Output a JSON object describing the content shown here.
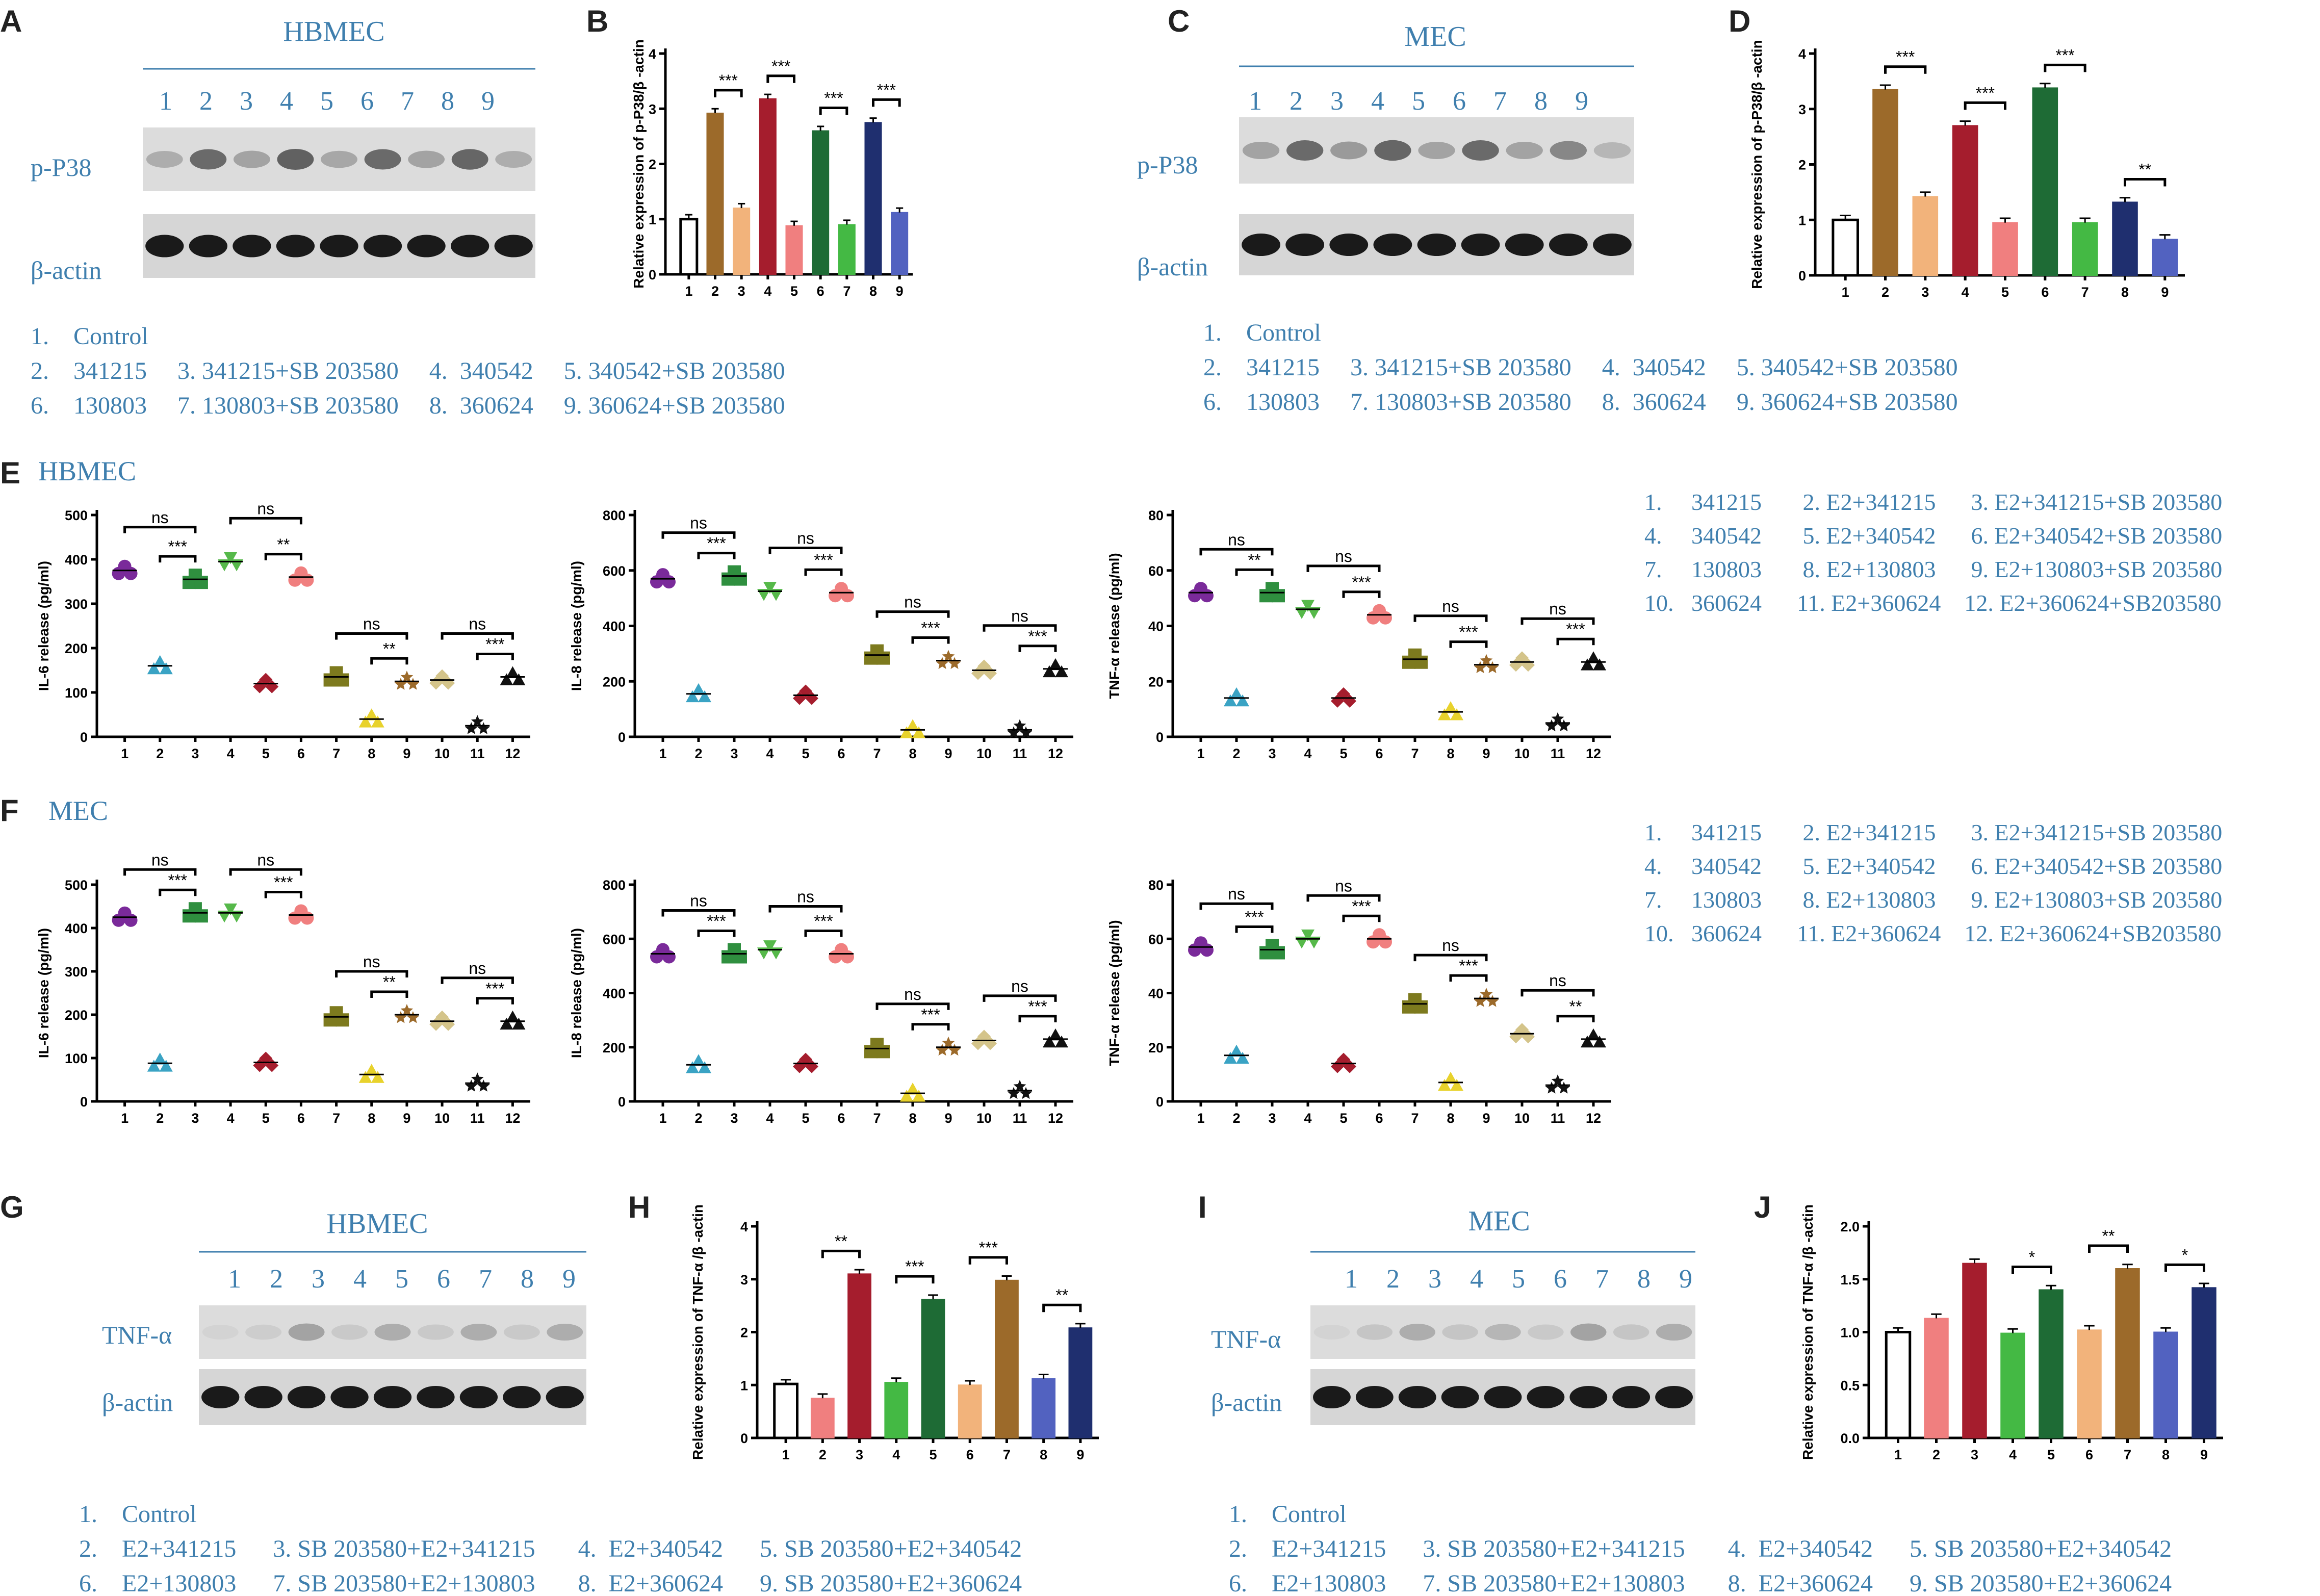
{
  "colors": {
    "label_blue": "#3f7fae"
  },
  "panels": [
    "A",
    "B",
    "C",
    "D",
    "E",
    "F",
    "G",
    "H",
    "I",
    "J"
  ],
  "western_blots": [
    {
      "panel": "A",
      "title": "HBMEC",
      "lanes": [
        "1",
        "2",
        "3",
        "4",
        "5",
        "6",
        "7",
        "8",
        "9"
      ],
      "rows": [
        "p-P38",
        "β-actin"
      ],
      "row1_intensity": [
        0.25,
        0.6,
        0.3,
        0.65,
        0.28,
        0.6,
        0.3,
        0.62,
        0.25
      ],
      "legend": {
        "line1": "1.    Control",
        "line2": "2.    341215     3. 341215+SB 203580     4.  340542     5. 340542+SB 203580",
        "line3": "6.    130803     7. 130803+SB 203580     8.  360624     9. 360624+SB 203580"
      }
    },
    {
      "panel": "C",
      "title": "MEC",
      "lanes": [
        "1",
        "2",
        "3",
        "4",
        "5",
        "6",
        "7",
        "8",
        "9"
      ],
      "rows": [
        "p-P38",
        "β-actin"
      ],
      "row1_intensity": [
        0.3,
        0.6,
        0.35,
        0.62,
        0.3,
        0.6,
        0.3,
        0.45,
        0.2
      ],
      "legend": {
        "line1": "1.    Control",
        "line2": "2.    341215     3. 341215+SB 203580     4.  340542     5. 340542+SB 203580",
        "line3": "6.    130803     7. 130803+SB 203580     8.  360624     9. 360624+SB 203580"
      }
    },
    {
      "panel": "G",
      "title": "HBMEC",
      "lanes": [
        "1",
        "2",
        "3",
        "4",
        "5",
        "6",
        "7",
        "8",
        "9"
      ],
      "rows": [
        "TNF-α",
        "β-actin"
      ],
      "row1_intensity": [
        0.05,
        0.08,
        0.3,
        0.1,
        0.25,
        0.1,
        0.25,
        0.1,
        0.25
      ],
      "legend": {
        "line1": "1.    Control",
        "line2": "2.    E2+341215      3. SB 203580+E2+341215       4.  E2+340542      5. SB 203580+E2+340542",
        "line3": "6.    E2+130803      7. SB 203580+E2+130803       8.  E2+360624      9. SB 203580+E2+360624"
      }
    },
    {
      "panel": "I",
      "title": "MEC",
      "lanes": [
        "1",
        "2",
        "3",
        "4",
        "5",
        "6",
        "7",
        "8",
        "9"
      ],
      "rows": [
        "TNF-α",
        "β-actin"
      ],
      "row1_intensity": [
        0.05,
        0.12,
        0.25,
        0.12,
        0.2,
        0.1,
        0.3,
        0.12,
        0.25
      ],
      "legend": {
        "line1": "1.    Control",
        "line2": "2.    E2+341215      3. SB 203580+E2+341215       4.  E2+340542      5. SB 203580+E2+340542",
        "line3": "6.    E2+130803      7. SB 203580+E2+130803       8.  E2+360624      9. SB 203580+E2+360624"
      }
    }
  ],
  "section_labels": {
    "E": "HBMEC",
    "F": "MEC"
  },
  "scatter_legend": {
    "line1": "1.     341215       2. E2+341215      3. E2+341215+SB 203580",
    "line2": "4.     340542       5. E2+340542      6. E2+340542+SB 203580",
    "line3": "7.     130803       8. E2+130803      9. E2+130803+SB 203580",
    "line4": "10.   360624      11. E2+360624    12. E2+360624+SB203580"
  },
  "chart_data": [
    {
      "panel": "B",
      "type": "bar",
      "ylabel": "Relative expression of p-P38/β -actin",
      "ylim": [
        0,
        4
      ],
      "yticks": [
        0,
        1,
        2,
        3,
        4
      ],
      "categories": [
        "1",
        "2",
        "3",
        "4",
        "5",
        "6",
        "7",
        "8",
        "9"
      ],
      "values": [
        1.0,
        2.92,
        1.2,
        3.18,
        0.88,
        2.6,
        0.9,
        2.75,
        1.12
      ],
      "colors": [
        "#ffffff",
        "#9c6a2a",
        "#f2b37b",
        "#a51d2d",
        "#f07f7f",
        "#1e6b35",
        "#44b944",
        "#1f2f6f",
        "#5262c0"
      ],
      "significance": [
        {
          "from": 2,
          "to": 3,
          "label": "***"
        },
        {
          "from": 4,
          "to": 5,
          "label": "***"
        },
        {
          "from": 6,
          "to": 7,
          "label": "***"
        },
        {
          "from": 8,
          "to": 9,
          "label": "***"
        }
      ]
    },
    {
      "panel": "D",
      "type": "bar",
      "ylabel": "Relative expression of p-P38/β -actin",
      "ylim": [
        0,
        4
      ],
      "yticks": [
        0,
        1,
        2,
        3,
        4
      ],
      "categories": [
        "1",
        "2",
        "3",
        "4",
        "5",
        "6",
        "7",
        "8",
        "9"
      ],
      "values": [
        1.0,
        3.35,
        1.42,
        2.7,
        0.95,
        3.38,
        0.95,
        1.32,
        0.65
      ],
      "colors": [
        "#ffffff",
        "#9c6a2a",
        "#f2b37b",
        "#a51d2d",
        "#f07f7f",
        "#1e6b35",
        "#44b944",
        "#1f2f6f",
        "#5262c0"
      ],
      "significance": [
        {
          "from": 2,
          "to": 3,
          "label": "***"
        },
        {
          "from": 4,
          "to": 5,
          "label": "***"
        },
        {
          "from": 6,
          "to": 7,
          "label": "***"
        },
        {
          "from": 8,
          "to": 9,
          "label": "**"
        }
      ]
    },
    {
      "panel": "E",
      "type": "scatter",
      "ylabel": "IL-6 release (pg/ml)",
      "ylim": [
        0,
        500
      ],
      "yticks": [
        0,
        100,
        200,
        300,
        400,
        500
      ],
      "categories": [
        "1",
        "2",
        "3",
        "4",
        "5",
        "6",
        "7",
        "8",
        "9",
        "10",
        "11",
        "12"
      ],
      "values": [
        375,
        160,
        355,
        395,
        120,
        360,
        135,
        40,
        125,
        128,
        25,
        135
      ],
      "markers": [
        "circle",
        "triangle",
        "square",
        "triangle-down",
        "diamond",
        "circle",
        "square",
        "triangle",
        "star",
        "diamond",
        "star",
        "triangle"
      ],
      "significance": [
        {
          "from": 1,
          "to": 3,
          "label": "ns",
          "level": 2
        },
        {
          "from": 2,
          "to": 3,
          "label": "***",
          "level": 1
        },
        {
          "from": 4,
          "to": 6,
          "label": "ns",
          "level": 2
        },
        {
          "from": 5,
          "to": 6,
          "label": "**",
          "level": 1
        },
        {
          "from": 7,
          "to": 9,
          "label": "ns",
          "level": 2
        },
        {
          "from": 8,
          "to": 9,
          "label": "**",
          "level": 1
        },
        {
          "from": 10,
          "to": 12,
          "label": "ns",
          "level": 2
        },
        {
          "from": 11,
          "to": 12,
          "label": "***",
          "level": 1
        }
      ]
    },
    {
      "panel": "E",
      "type": "scatter",
      "ylabel": "IL-8 release (pg/ml)",
      "ylim": [
        0,
        800
      ],
      "yticks": [
        0,
        200,
        400,
        600,
        800
      ],
      "categories": [
        "1",
        "2",
        "3",
        "4",
        "5",
        "6",
        "7",
        "8",
        "9",
        "10",
        "11",
        "12"
      ],
      "values": [
        570,
        155,
        580,
        525,
        150,
        520,
        295,
        25,
        275,
        240,
        25,
        245
      ],
      "markers": [
        "circle",
        "triangle",
        "square",
        "triangle-down",
        "diamond",
        "circle",
        "square",
        "triangle",
        "star",
        "diamond",
        "star",
        "triangle"
      ],
      "significance": [
        {
          "from": 1,
          "to": 3,
          "label": "ns",
          "level": 2
        },
        {
          "from": 2,
          "to": 3,
          "label": "***",
          "level": 1
        },
        {
          "from": 4,
          "to": 6,
          "label": "ns",
          "level": 2
        },
        {
          "from": 5,
          "to": 6,
          "label": "***",
          "level": 1
        },
        {
          "from": 7,
          "to": 9,
          "label": "ns",
          "level": 2
        },
        {
          "from": 8,
          "to": 9,
          "label": "***",
          "level": 1
        },
        {
          "from": 10,
          "to": 12,
          "label": "ns",
          "level": 2
        },
        {
          "from": 11,
          "to": 12,
          "label": "***",
          "level": 1
        }
      ]
    },
    {
      "panel": "E",
      "type": "scatter",
      "ylabel": "TNF-α  release (pg/ml)",
      "ylim": [
        0,
        80
      ],
      "yticks": [
        0,
        20,
        40,
        60,
        80
      ],
      "categories": [
        "1",
        "2",
        "3",
        "4",
        "5",
        "6",
        "7",
        "8",
        "9",
        "10",
        "11",
        "12"
      ],
      "values": [
        52,
        14,
        52,
        46,
        14,
        44,
        28,
        9,
        26,
        27,
        5,
        27
      ],
      "markers": [
        "circle",
        "triangle",
        "square",
        "triangle-down",
        "diamond",
        "circle",
        "square",
        "triangle",
        "star",
        "diamond",
        "star",
        "triangle"
      ],
      "significance": [
        {
          "from": 1,
          "to": 3,
          "label": "ns",
          "level": 2
        },
        {
          "from": 2,
          "to": 3,
          "label": "**",
          "level": 1
        },
        {
          "from": 4,
          "to": 6,
          "label": "ns",
          "level": 2
        },
        {
          "from": 5,
          "to": 6,
          "label": "***",
          "level": 1
        },
        {
          "from": 7,
          "to": 9,
          "label": "ns",
          "level": 2
        },
        {
          "from": 8,
          "to": 9,
          "label": "***",
          "level": 1
        },
        {
          "from": 10,
          "to": 12,
          "label": "ns",
          "level": 2
        },
        {
          "from": 11,
          "to": 12,
          "label": "***",
          "level": 1
        }
      ]
    },
    {
      "panel": "F",
      "type": "scatter",
      "ylabel": "IL-6 release (pg/ml)",
      "ylim": [
        0,
        500
      ],
      "yticks": [
        0,
        100,
        200,
        300,
        400,
        500
      ],
      "categories": [
        "1",
        "2",
        "3",
        "4",
        "5",
        "6",
        "7",
        "8",
        "9",
        "10",
        "11",
        "12"
      ],
      "values": [
        425,
        88,
        435,
        435,
        90,
        430,
        195,
        62,
        200,
        185,
        42,
        185
      ],
      "markers": [
        "circle",
        "triangle",
        "square",
        "triangle-down",
        "diamond",
        "circle",
        "square",
        "triangle",
        "star",
        "diamond",
        "star",
        "triangle"
      ],
      "significance": [
        {
          "from": 1,
          "to": 3,
          "label": "ns",
          "level": 2
        },
        {
          "from": 2,
          "to": 3,
          "label": "***",
          "level": 1
        },
        {
          "from": 4,
          "to": 6,
          "label": "ns",
          "level": 2
        },
        {
          "from": 5,
          "to": 6,
          "label": "***",
          "level": 1
        },
        {
          "from": 7,
          "to": 9,
          "label": "ns",
          "level": 2
        },
        {
          "from": 8,
          "to": 9,
          "label": "**",
          "level": 1
        },
        {
          "from": 10,
          "to": 12,
          "label": "ns",
          "level": 2
        },
        {
          "from": 11,
          "to": 12,
          "label": "***",
          "level": 1
        }
      ]
    },
    {
      "panel": "F",
      "type": "scatter",
      "ylabel": "IL-8 release (pg/ml)",
      "ylim": [
        0,
        800
      ],
      "yticks": [
        0,
        200,
        400,
        600,
        800
      ],
      "categories": [
        "1",
        "2",
        "3",
        "4",
        "5",
        "6",
        "7",
        "8",
        "9",
        "10",
        "11",
        "12"
      ],
      "values": [
        545,
        135,
        545,
        560,
        140,
        545,
        195,
        30,
        200,
        225,
        40,
        230
      ],
      "markers": [
        "circle",
        "triangle",
        "square",
        "triangle-down",
        "diamond",
        "circle",
        "square",
        "triangle",
        "star",
        "diamond",
        "star",
        "triangle"
      ],
      "significance": [
        {
          "from": 1,
          "to": 3,
          "label": "ns",
          "level": 2
        },
        {
          "from": 2,
          "to": 3,
          "label": "***",
          "level": 1
        },
        {
          "from": 4,
          "to": 6,
          "label": "ns",
          "level": 2
        },
        {
          "from": 5,
          "to": 6,
          "label": "***",
          "level": 1
        },
        {
          "from": 7,
          "to": 9,
          "label": "ns",
          "level": 2
        },
        {
          "from": 8,
          "to": 9,
          "label": "***",
          "level": 1
        },
        {
          "from": 10,
          "to": 12,
          "label": "ns",
          "level": 2
        },
        {
          "from": 11,
          "to": 12,
          "label": "***",
          "level": 1
        }
      ]
    },
    {
      "panel": "F",
      "type": "scatter",
      "ylabel": "TNF-α  release (pg/ml)",
      "ylim": [
        0,
        80
      ],
      "yticks": [
        0,
        20,
        40,
        60,
        80
      ],
      "categories": [
        "1",
        "2",
        "3",
        "4",
        "5",
        "6",
        "7",
        "8",
        "9",
        "10",
        "11",
        "12"
      ],
      "values": [
        57,
        17,
        56,
        60,
        14,
        60,
        36,
        7,
        38,
        25,
        6,
        23
      ],
      "markers": [
        "circle",
        "triangle",
        "square",
        "triangle-down",
        "diamond",
        "circle",
        "square",
        "triangle",
        "star",
        "diamond",
        "star",
        "triangle"
      ],
      "significance": [
        {
          "from": 1,
          "to": 3,
          "label": "ns",
          "level": 2
        },
        {
          "from": 2,
          "to": 3,
          "label": "***",
          "level": 1
        },
        {
          "from": 4,
          "to": 6,
          "label": "ns",
          "level": 2
        },
        {
          "from": 5,
          "to": 6,
          "label": "***",
          "level": 1
        },
        {
          "from": 7,
          "to": 9,
          "label": "ns",
          "level": 2
        },
        {
          "from": 8,
          "to": 9,
          "label": "***",
          "level": 1
        },
        {
          "from": 10,
          "to": 12,
          "label": "ns",
          "level": 2
        },
        {
          "from": 11,
          "to": 12,
          "label": "**",
          "level": 1
        }
      ]
    },
    {
      "panel": "H",
      "type": "bar",
      "ylabel": "Relative expression of TNF-α /β -actin",
      "ylim": [
        0,
        4
      ],
      "yticks": [
        0,
        1,
        2,
        3,
        4
      ],
      "categories": [
        "1",
        "2",
        "3",
        "4",
        "5",
        "6",
        "7",
        "8",
        "9"
      ],
      "values": [
        1.02,
        0.75,
        3.1,
        1.05,
        2.62,
        1.0,
        2.98,
        1.12,
        2.08
      ],
      "colors": [
        "#ffffff",
        "#f07f7f",
        "#a51d2d",
        "#44b944",
        "#1e6b35",
        "#f2b37b",
        "#9c6a2a",
        "#5262c0",
        "#1f2f6f"
      ],
      "significance": [
        {
          "from": 2,
          "to": 3,
          "label": "**"
        },
        {
          "from": 4,
          "to": 5,
          "label": "***"
        },
        {
          "from": 6,
          "to": 7,
          "label": "***"
        },
        {
          "from": 8,
          "to": 9,
          "label": "**"
        }
      ]
    },
    {
      "panel": "J",
      "type": "bar",
      "ylabel": "Relative expression of TNF-α /β -actin",
      "ylim": [
        0,
        2.0
      ],
      "yticks": [
        "0.0",
        "0.5",
        "1.0",
        "1.5",
        "2.0"
      ],
      "categories": [
        "1",
        "2",
        "3",
        "4",
        "5",
        "6",
        "7",
        "8",
        "9"
      ],
      "values": [
        1.0,
        1.13,
        1.65,
        0.99,
        1.4,
        1.02,
        1.6,
        1.0,
        1.42
      ],
      "colors": [
        "#ffffff",
        "#f07f7f",
        "#a51d2d",
        "#44b944",
        "#1e6b35",
        "#f2b37b",
        "#9c6a2a",
        "#5262c0",
        "#1f2f6f"
      ],
      "significance": [
        {
          "from": 4,
          "to": 5,
          "label": "*"
        },
        {
          "from": 6,
          "to": 7,
          "label": "**"
        },
        {
          "from": 8,
          "to": 9,
          "label": "*"
        }
      ]
    }
  ]
}
